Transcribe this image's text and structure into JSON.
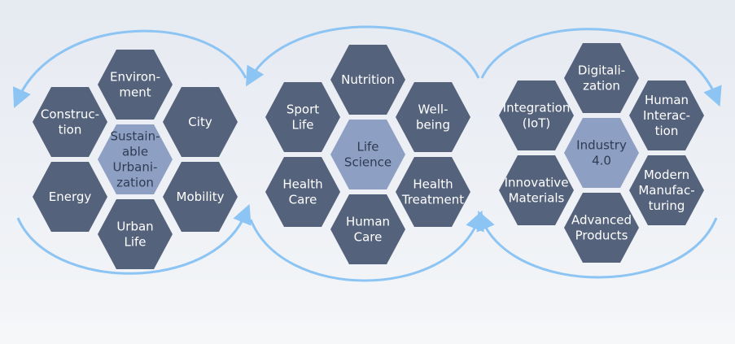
{
  "clusters": [
    {
      "center": {
        "label": [
          "Sustain-",
          "able",
          "Urbani-",
          "zation"
        ]
      },
      "cells": [
        {
          "label": [
            "Environ-",
            "ment"
          ]
        },
        {
          "label": [
            "City"
          ]
        },
        {
          "label": [
            "Mobility"
          ]
        },
        {
          "label": [
            "Urban",
            "Life"
          ]
        },
        {
          "label": [
            "Energy"
          ]
        },
        {
          "label": [
            "Construc-",
            "tion"
          ]
        }
      ]
    },
    {
      "center": {
        "label": [
          "Life",
          "Science"
        ]
      },
      "cells": [
        {
          "label": [
            "Nutrition"
          ]
        },
        {
          "label": [
            "Well-",
            "being"
          ]
        },
        {
          "label": [
            "Health",
            "Treatment"
          ]
        },
        {
          "label": [
            "Human",
            "Care"
          ]
        },
        {
          "label": [
            "Health",
            "Care"
          ]
        },
        {
          "label": [
            "Sport",
            "Life"
          ]
        }
      ]
    },
    {
      "center": {
        "label": [
          "Industry",
          "4.0"
        ]
      },
      "cells": [
        {
          "label": [
            "Digitali-",
            "zation"
          ]
        },
        {
          "label": [
            "Human",
            "Interac-",
            "tion"
          ]
        },
        {
          "label": [
            "Modern",
            "Manufac-",
            "turing"
          ]
        },
        {
          "label": [
            "Advanced",
            "Products"
          ]
        },
        {
          "label": [
            "Innovative",
            "Materials"
          ]
        },
        {
          "label": [
            "Integration",
            "(IoT)"
          ]
        }
      ]
    }
  ],
  "colors": {
    "cell": "#55627b",
    "center": "#8da0c3",
    "arrow": "#8cc4f4",
    "background_top": "#e6eaf1",
    "background_bottom": "#f3f5f8",
    "footer": "#f6f7f9"
  }
}
